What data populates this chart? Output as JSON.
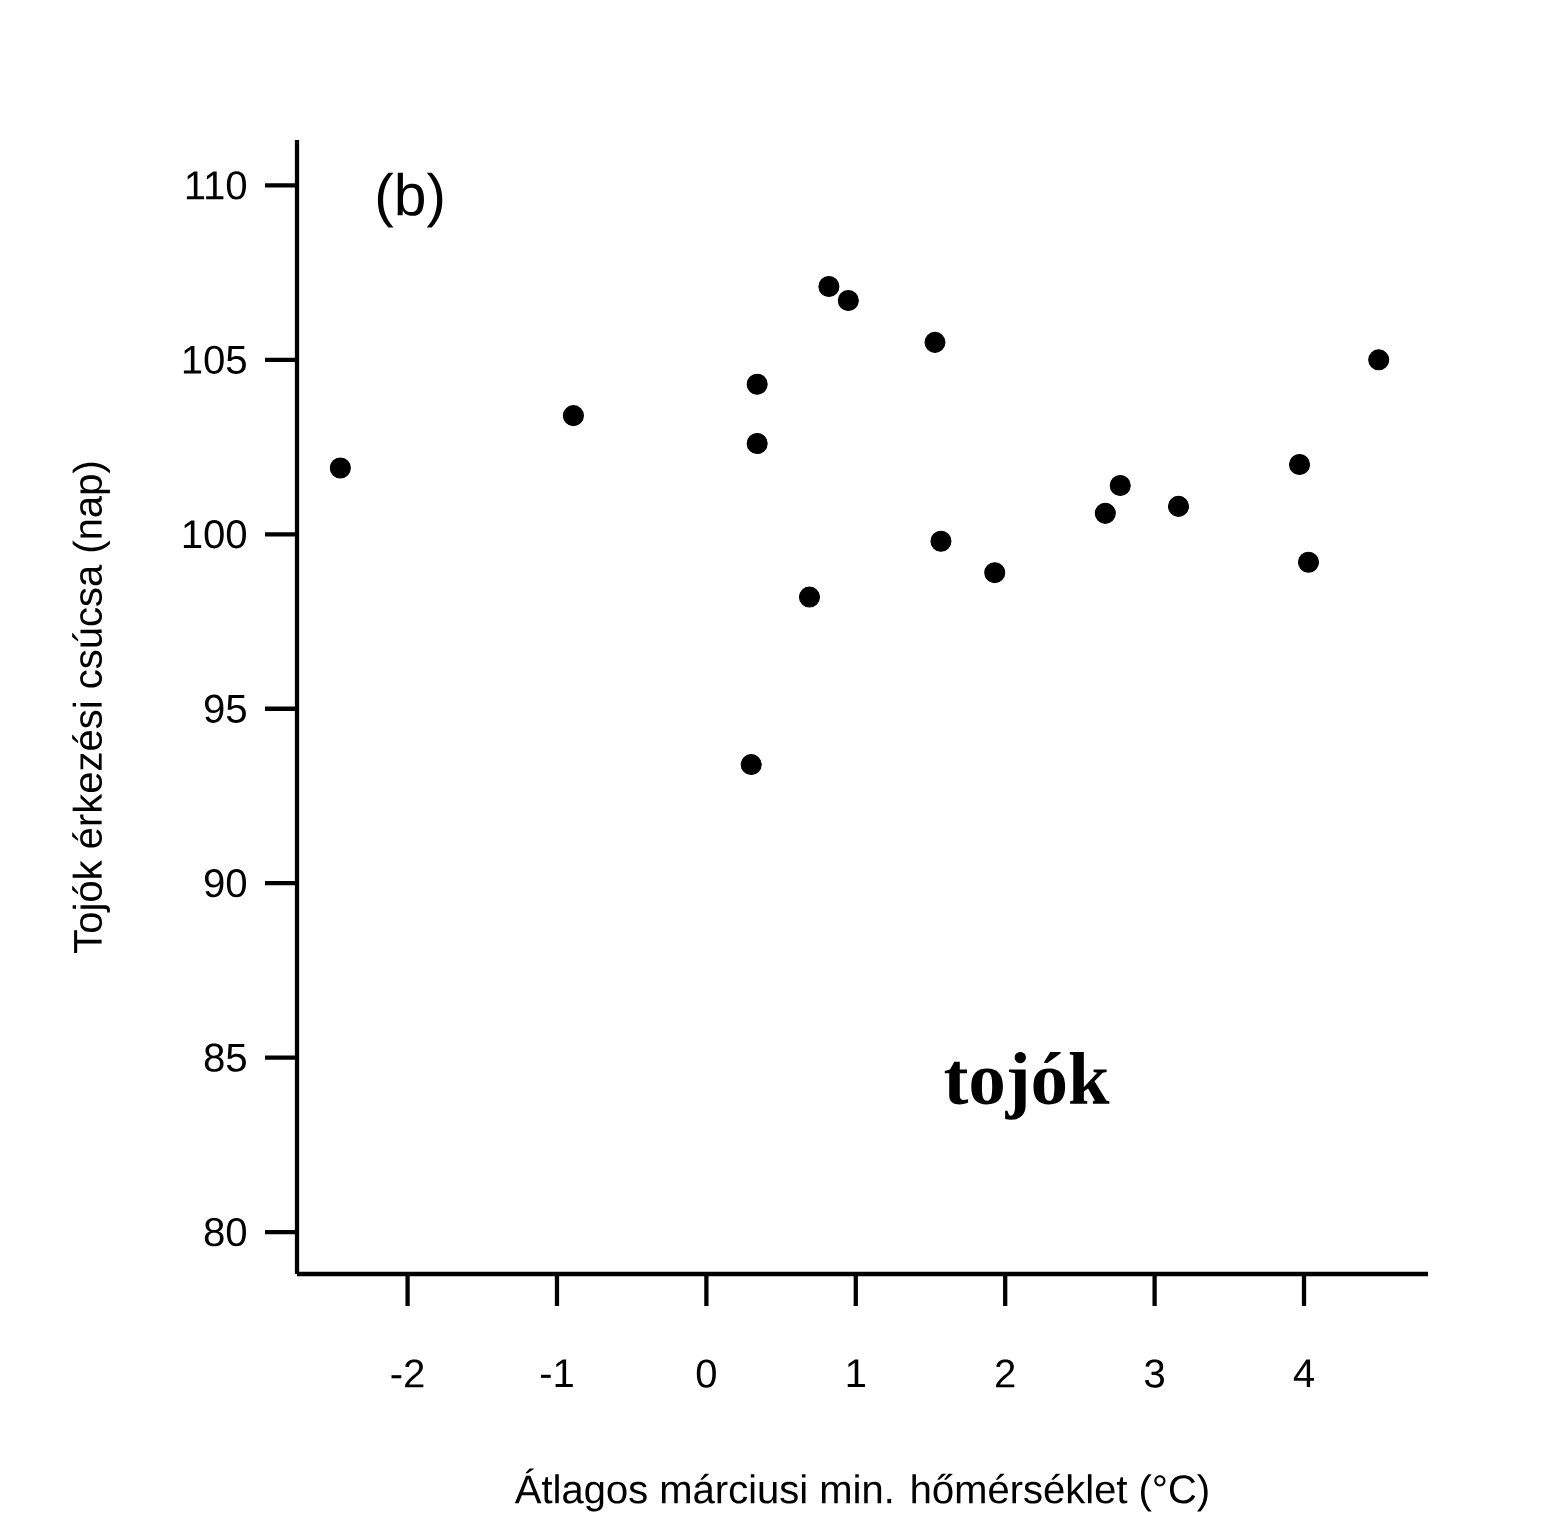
{
  "chart_data": {
    "type": "scatter",
    "xlabel": "Átlagos márciusi min. hőmérséklet (°C)",
    "ylabel": "Tojók érkezési csúcsa (nap)",
    "annotations": [
      "(b)",
      "tojók"
    ],
    "x": [
      -2.45,
      -0.89,
      0.34,
      0.34,
      0.3,
      0.69,
      0.82,
      0.95,
      1.53,
      1.57,
      1.93,
      2.67,
      2.77,
      3.16,
      3.97,
      4.03,
      4.5
    ],
    "values": [
      101.9,
      103.4,
      104.3,
      102.6,
      93.4,
      98.2,
      107.1,
      106.7,
      105.5,
      99.8,
      98.9,
      100.6,
      101.4,
      100.8,
      102.0,
      99.2,
      105.0
    ],
    "color": "#000000",
    "marker": "circle",
    "xlim": [
      -2.74,
      4.83
    ],
    "ylim": [
      78.8,
      111.3
    ],
    "xticks": [
      -2,
      -1,
      0,
      1,
      2,
      3,
      4
    ],
    "yticks": [
      80,
      85,
      90,
      95,
      100,
      105,
      110
    ]
  }
}
